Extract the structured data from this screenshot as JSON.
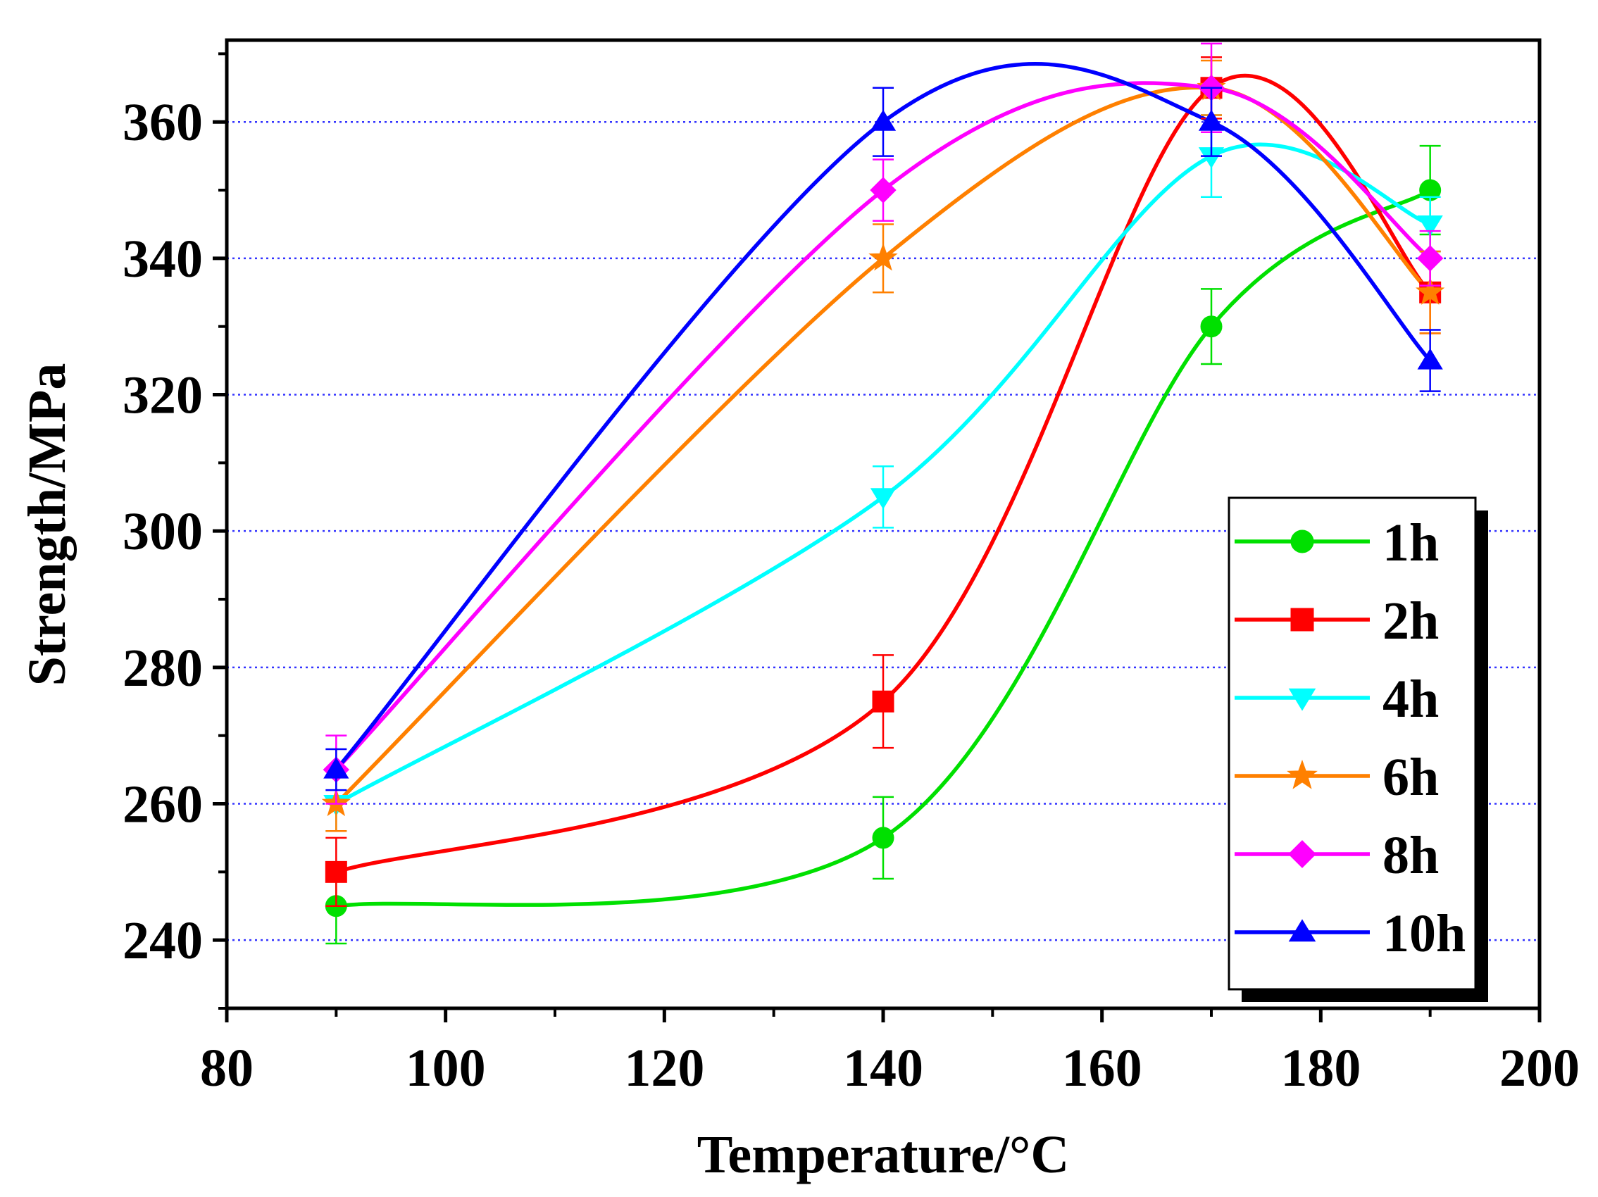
{
  "chart_data": {
    "type": "line",
    "title": "",
    "xlabel": "Temperature/°C",
    "ylabel": "Strength/MPa",
    "xlim": [
      80,
      200
    ],
    "ylim": [
      230,
      372
    ],
    "xticks": [
      80,
      100,
      120,
      140,
      160,
      180,
      200
    ],
    "yticks": [
      240,
      260,
      280,
      300,
      320,
      340,
      360
    ],
    "grid": "horizontal-dotted",
    "legend_position": "bottom-right",
    "x": [
      90,
      140,
      170,
      190
    ],
    "series": [
      {
        "name": "1h",
        "color": "#00e000",
        "marker": "circle",
        "values": [
          245,
          255,
          330,
          350
        ],
        "errors": [
          5.5,
          6,
          5.5,
          6.5
        ]
      },
      {
        "name": "2h",
        "color": "#ff0000",
        "marker": "square",
        "values": [
          250,
          275,
          365,
          335
        ],
        "errors": [
          5,
          6.8,
          4.5,
          6
        ]
      },
      {
        "name": "4h",
        "color": "#00ffff",
        "marker": "triangle-down",
        "values": [
          260,
          305,
          355,
          345
        ],
        "errors": [
          4,
          4.5,
          6,
          4
        ]
      },
      {
        "name": "6h",
        "color": "#ff8000",
        "marker": "star",
        "values": [
          260,
          340,
          365,
          335
        ],
        "errors": [
          4,
          5,
          4,
          6
        ]
      },
      {
        "name": "8h",
        "color": "#ff00ff",
        "marker": "diamond",
        "values": [
          265,
          350,
          365,
          340
        ],
        "errors": [
          5,
          4.5,
          6.5,
          4
        ]
      },
      {
        "name": "10h",
        "color": "#0000ff",
        "marker": "triangle-up",
        "values": [
          265,
          360,
          360,
          325
        ],
        "errors": [
          3,
          5,
          5,
          4.5
        ]
      }
    ]
  }
}
